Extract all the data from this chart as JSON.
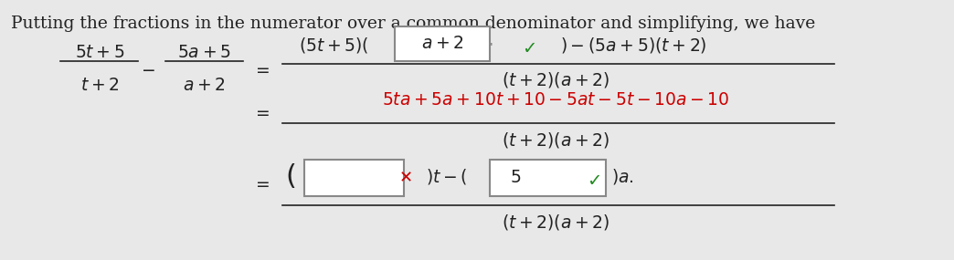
{
  "bg_color": "#e8e8e8",
  "title_text": "Putting the fractions in the numerator over a common denominator and simplifying, we have",
  "title_color": "#222222",
  "title_fontsize": 13.5,
  "math_color_dark": "#222222",
  "math_color_red": "#cc0000",
  "math_color_green": "#228b22",
  "box_fill": "#f5f5f5",
  "box_edge": "#888888",
  "check_green": "#228b22",
  "cross_red": "#cc0000"
}
